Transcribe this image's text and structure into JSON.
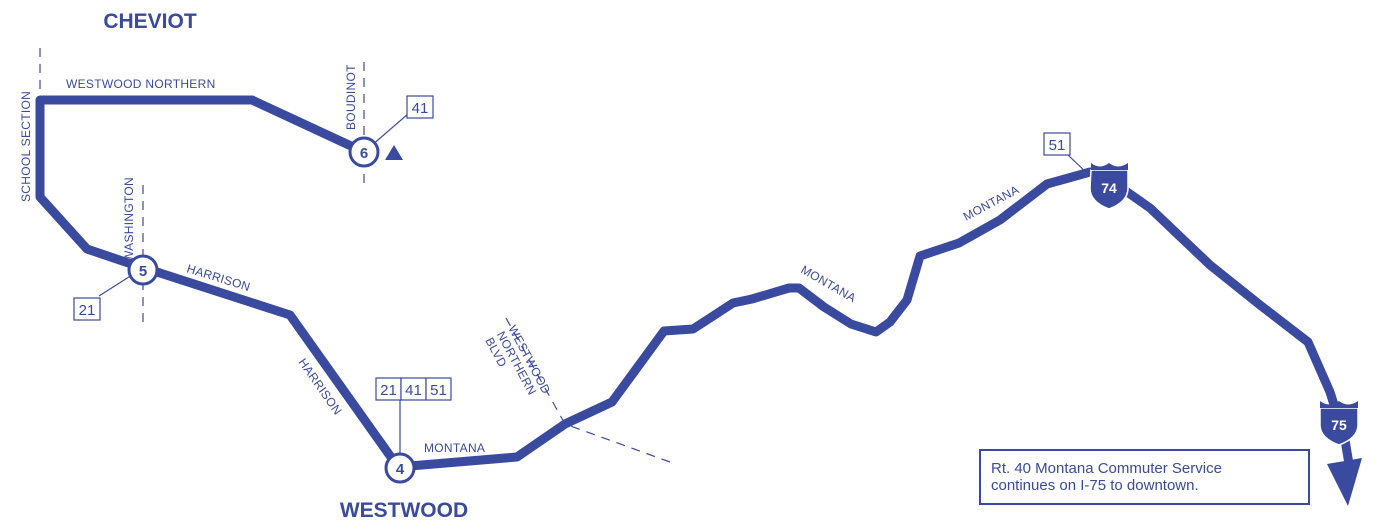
{
  "towns": {
    "cheviot": "CHEVIOT",
    "westwood": "WESTWOOD"
  },
  "streets": {
    "westwood_northern_top": "WESTWOOD NORTHERN",
    "school_section": "SCHOOL SECTION",
    "boudinot": "BOUDINOT",
    "washington": "WASHINGTON",
    "harrison_1": "HARRISON",
    "harrison_2": "HARRISON",
    "montana_1": "MONTANA",
    "montana_2": "MONTANA",
    "montana_3": "MONTANA",
    "westwood_northern_blvd": [
      "WESTWOOD",
      "NORTHERN",
      "BLVD"
    ]
  },
  "stops": [
    {
      "number": "6"
    },
    {
      "number": "5"
    },
    {
      "number": "4"
    }
  ],
  "connecting_routes": {
    "stop6": [
      "41"
    ],
    "stop5": [
      "21"
    ],
    "stop4": [
      "21",
      "41",
      "51"
    ],
    "interstate74": [
      "51"
    ]
  },
  "interstates": {
    "i74": "74",
    "i75": "75"
  },
  "note": {
    "line1": "Rt. 40 Montana Commuter Service",
    "line2": "continues on I-75 to downtown."
  },
  "colors": {
    "route": "#3a4a9f",
    "background": "#ffffff"
  },
  "icons": {
    "stop6_marker": "triangle-icon",
    "direction": "arrow-down-icon"
  }
}
